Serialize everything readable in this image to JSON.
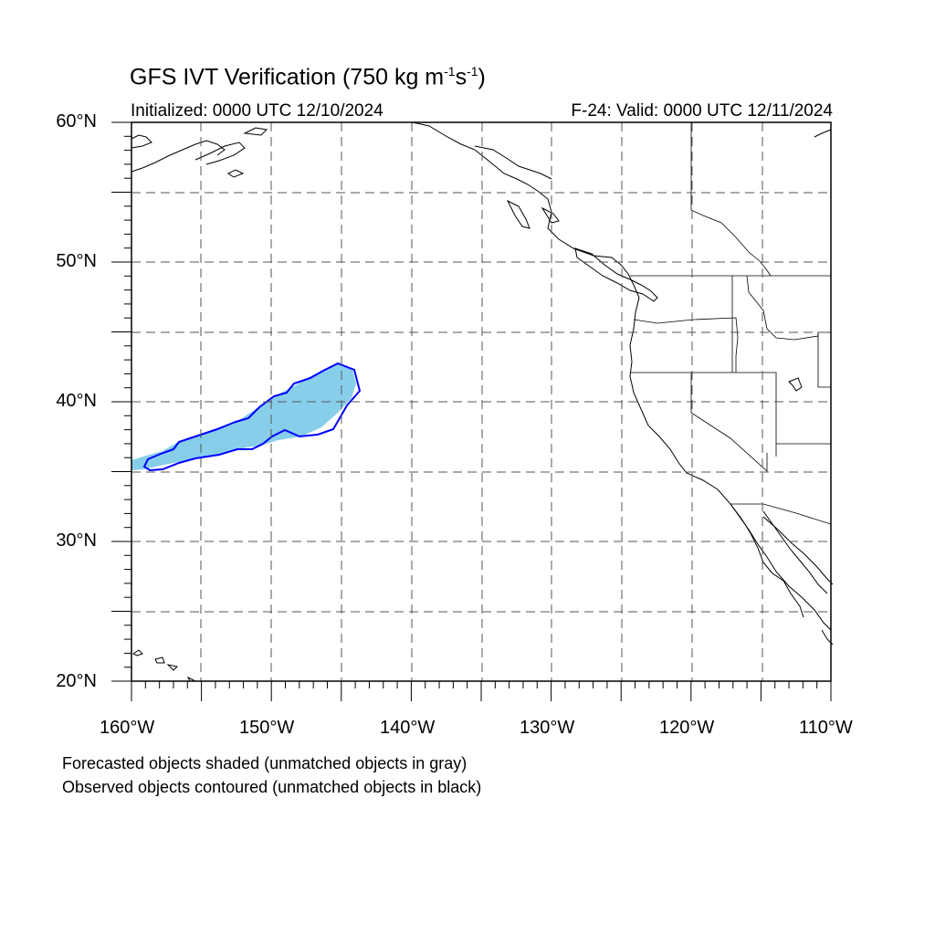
{
  "title": {
    "text": "GFS IVT Verification (750 kg m",
    "sup1": "-1",
    "mid": "s",
    "sup2": "-1",
    "end": ")"
  },
  "initialized": "Initialized: 0000 UTC 12/10/2024",
  "valid": "F-24: Valid: 0000 UTC 12/11/2024",
  "lat_labels": [
    "60°N",
    "50°N",
    "40°N",
    "30°N",
    "20°N"
  ],
  "lon_labels": [
    "160°W",
    "150°W",
    "140°W",
    "130°W",
    "120°W",
    "110°W"
  ],
  "notes": [
    "Forecasted objects shaded (unmatched objects in gray)",
    "Observed objects contoured (unmatched objects in black)"
  ],
  "map": {
    "lon_range": [
      -160,
      -110
    ],
    "lat_range": [
      20,
      60
    ],
    "grid_spacing_deg": 5,
    "colors": {
      "forecast_matched_fill": "#87ceeb",
      "observed_matched_contour": "#0000ff",
      "coastline": "#000000",
      "grid": "#555555"
    }
  }
}
